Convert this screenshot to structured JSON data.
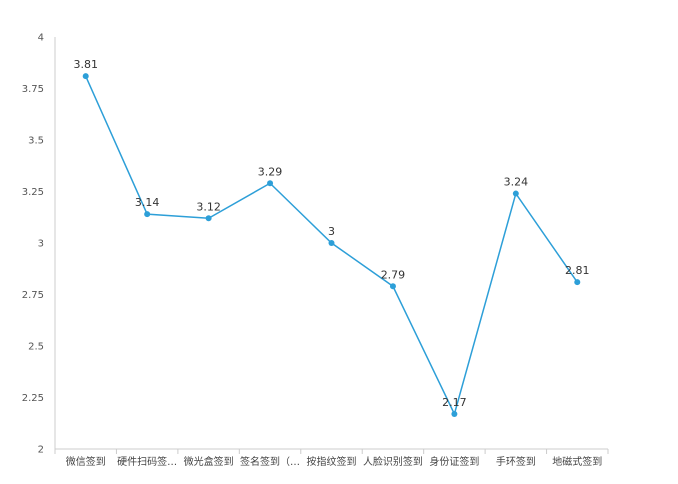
{
  "chart_data": {
    "type": "line",
    "categories": [
      "微信签到",
      "硬件扫码签…",
      "微光盒签到",
      "签名签到（…",
      "按指纹签到",
      "人脸识别签到",
      "身份证签到",
      "手环签到",
      "地磁式签到"
    ],
    "values": [
      3.81,
      3.14,
      3.12,
      3.29,
      3,
      2.79,
      2.17,
      3.24,
      2.81
    ],
    "data_labels": [
      "3.81",
      "3.14",
      "3.12",
      "3.29",
      "3",
      "2.79",
      "2.17",
      "3.24",
      "2.81"
    ],
    "y_ticks": [
      "2",
      "2.25",
      "2.5",
      "2.75",
      "3",
      "3.25",
      "3.5",
      "3.75",
      "4"
    ],
    "ylim": [
      2,
      4
    ],
    "title": "",
    "xlabel": "",
    "ylabel": "",
    "grid": false,
    "colors": {
      "line": "#2d9fd8",
      "axis": "#cccccc"
    }
  }
}
